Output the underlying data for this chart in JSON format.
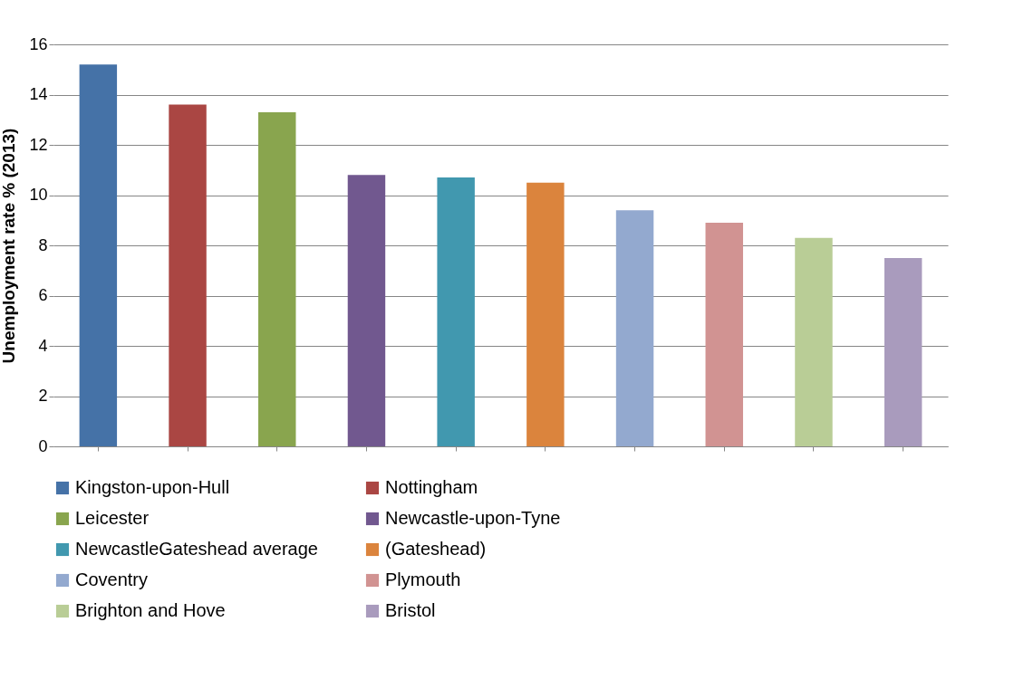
{
  "chart_data": {
    "type": "bar",
    "ylabel": "Unemployment rate % (2013)",
    "categories": [
      null,
      null,
      null,
      null,
      null,
      null,
      null,
      null,
      null,
      null
    ],
    "series": [
      {
        "name": "Kingston-upon-Hull",
        "color": "#4572a7",
        "values": [
          15.2,
          null,
          null,
          null,
          null,
          null,
          null,
          null,
          null,
          null
        ]
      },
      {
        "name": "Nottingham",
        "color": "#aa4643",
        "values": [
          null,
          13.6,
          null,
          null,
          null,
          null,
          null,
          null,
          null,
          null
        ]
      },
      {
        "name": "Leicester",
        "color": "#89a54e",
        "values": [
          null,
          null,
          13.3,
          null,
          null,
          null,
          null,
          null,
          null,
          null
        ]
      },
      {
        "name": "Newcastle-upon-Tyne",
        "color": "#71588f",
        "values": [
          null,
          null,
          null,
          10.8,
          null,
          null,
          null,
          null,
          null,
          null
        ]
      },
      {
        "name": "NewcastleGateshead average",
        "color": "#4198af",
        "values": [
          null,
          null,
          null,
          null,
          10.7,
          null,
          null,
          null,
          null,
          null
        ]
      },
      {
        "name": "(Gateshead)",
        "color": "#db843d",
        "values": [
          null,
          null,
          null,
          null,
          null,
          10.5,
          null,
          null,
          null,
          null
        ]
      },
      {
        "name": "Coventry",
        "color": "#93a9cf",
        "values": [
          null,
          null,
          null,
          null,
          null,
          null,
          9.4,
          null,
          null,
          null
        ]
      },
      {
        "name": "Plymouth",
        "color": "#d19392",
        "values": [
          null,
          null,
          null,
          null,
          null,
          null,
          null,
          8.9,
          null,
          null
        ]
      },
      {
        "name": "Brighton and Hove",
        "color": "#b9cd96",
        "values": [
          null,
          null,
          null,
          null,
          null,
          null,
          null,
          null,
          8.3,
          null
        ]
      },
      {
        "name": "Bristol",
        "color": "#a99bbd",
        "values": [
          null,
          null,
          null,
          null,
          null,
          null,
          null,
          null,
          null,
          7.5
        ]
      }
    ],
    "ylim": [
      0,
      16
    ],
    "yticks": [
      0,
      2,
      4,
      6,
      8,
      10,
      12,
      14,
      16
    ],
    "grid": "y",
    "legend": "bottom",
    "tick_labels": "y"
  }
}
